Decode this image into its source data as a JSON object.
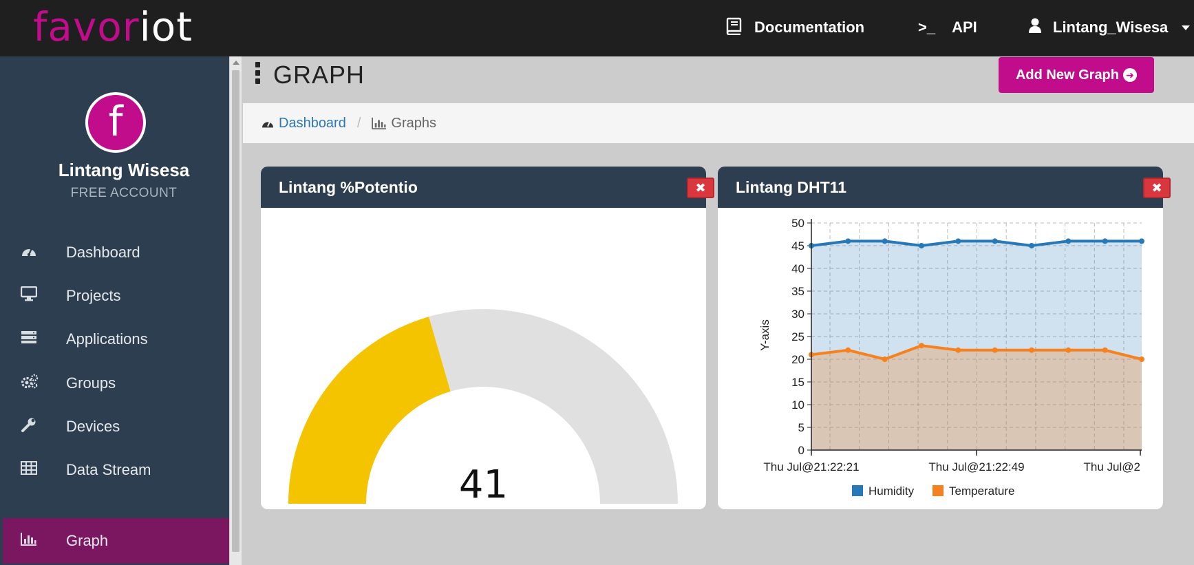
{
  "app": {
    "logo_main": "favor",
    "logo_accent": "iot",
    "brand_color": "#c10c8c"
  },
  "topnav": {
    "documentation": "Documentation",
    "api_icon": ">_",
    "api": "API",
    "user": "Lintang_Wisesa"
  },
  "sidebar": {
    "avatar_letter": "f",
    "user_name": "Lintang Wisesa",
    "account_type": "FREE ACCOUNT",
    "items": [
      {
        "label": "Dashboard",
        "icon": "dashboard-icon"
      },
      {
        "label": "Projects",
        "icon": "desktop-icon"
      },
      {
        "label": "Applications",
        "icon": "server-icon"
      },
      {
        "label": "Groups",
        "icon": "gears-icon"
      },
      {
        "label": "Devices",
        "icon": "wrench-icon"
      },
      {
        "label": "Data Stream",
        "icon": "table-icon"
      },
      {
        "label": "Graph",
        "icon": "bar-chart-icon",
        "active": true
      }
    ]
  },
  "header": {
    "title": "GRAPH",
    "add_button": "Add New Graph"
  },
  "breadcrumb": {
    "home": "Dashboard",
    "separator": "/",
    "current": "Graphs"
  },
  "panels": {
    "gauge": {
      "title": "Lintang %Potentio",
      "close": "✖",
      "value": "41"
    },
    "line": {
      "title": "Lintang DHT11",
      "close": "✖"
    }
  },
  "chart_data": [
    {
      "type": "gauge",
      "value": 41,
      "min": 0,
      "max": 100,
      "fill_color": "#f5c400",
      "track_color": "#e0e0e0"
    },
    {
      "type": "area",
      "ylabel": "Y-axis",
      "ylim": [
        0,
        50
      ],
      "yticks": [
        0,
        5,
        10,
        15,
        20,
        25,
        30,
        35,
        40,
        45,
        50
      ],
      "xtick_labels": [
        "Thu Jul@21:22:21",
        "Thu Jul@21:22:49",
        "Thu Jul@2"
      ],
      "grid": true,
      "legend": "bottom",
      "series": [
        {
          "name": "Humidity",
          "color": "#2778b8",
          "values": [
            45,
            46,
            46,
            45,
            46,
            46,
            45,
            46,
            46,
            46
          ]
        },
        {
          "name": "Temperature",
          "color": "#f5821f",
          "values": [
            21,
            22,
            20,
            23,
            22,
            22,
            22,
            22,
            22,
            20
          ]
        }
      ]
    }
  ]
}
